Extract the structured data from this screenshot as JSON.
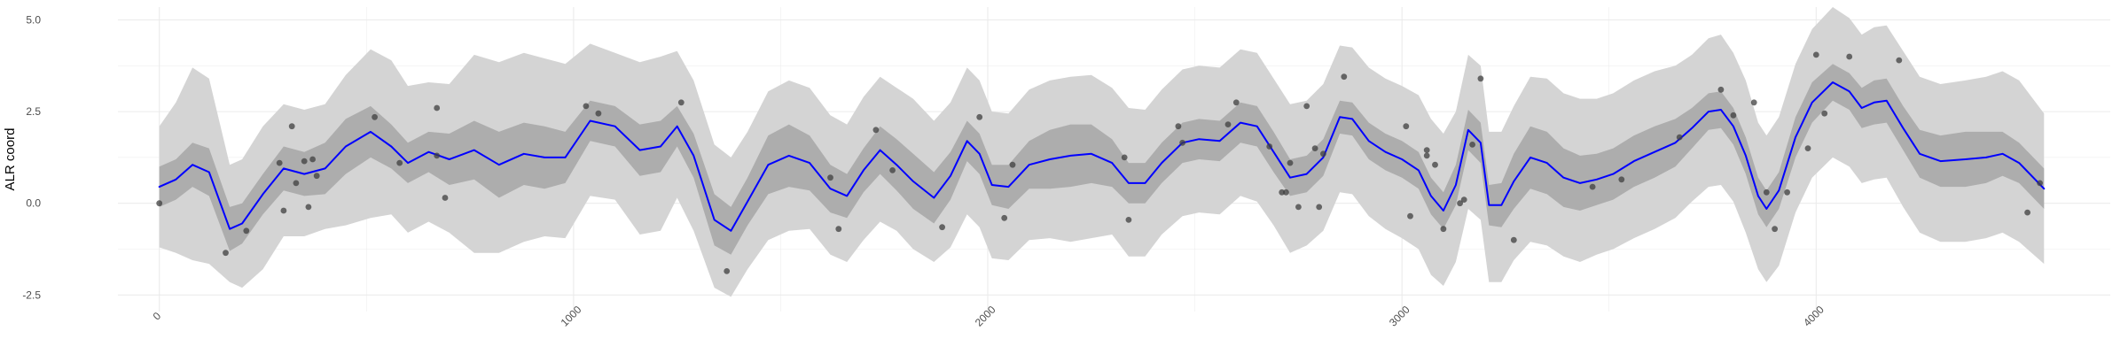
{
  "chart_data": {
    "type": "line",
    "title": "",
    "xlabel": "",
    "ylabel": "ALR coord",
    "xlim": [
      -100,
      4710
    ],
    "ylim": [
      -2.95,
      5.35
    ],
    "x_ticks": [
      0,
      1000,
      2000,
      3000,
      4000
    ],
    "x_tick_labels": [
      "0",
      "1000",
      "2000",
      "3000",
      "4000"
    ],
    "y_ticks": [
      -2.5,
      0,
      2.5,
      5
    ],
    "y_tick_labels": [
      "-2.5",
      "0.0",
      "2.5",
      "5.0"
    ],
    "grid": true,
    "legend": "none",
    "colors": {
      "line": "#0000ff",
      "inner_band": "#adadad",
      "outer_band": "#d4d4d4",
      "points": "#3f3f3f",
      "grid": "#ebebeb"
    },
    "mean_line": {
      "x": [
        0,
        40,
        80,
        120,
        170,
        200,
        250,
        300,
        350,
        400,
        450,
        510,
        560,
        600,
        650,
        700,
        760,
        820,
        880,
        930,
        980,
        1040,
        1100,
        1160,
        1210,
        1250,
        1290,
        1340,
        1380,
        1420,
        1470,
        1520,
        1570,
        1620,
        1660,
        1700,
        1740,
        1780,
        1820,
        1870,
        1910,
        1950,
        1980,
        2010,
        2050,
        2100,
        2150,
        2200,
        2250,
        2300,
        2340,
        2380,
        2420,
        2470,
        2510,
        2560,
        2610,
        2650,
        2690,
        2730,
        2770,
        2810,
        2850,
        2880,
        2920,
        2960,
        3000,
        3040,
        3070,
        3100,
        3130,
        3160,
        3190,
        3210,
        3240,
        3270,
        3310,
        3350,
        3390,
        3430,
        3470,
        3510,
        3560,
        3610,
        3660,
        3700,
        3740,
        3770,
        3800,
        3830,
        3860,
        3880,
        3910,
        3950,
        3990,
        4040,
        4080,
        4110,
        4140,
        4170,
        4210,
        4250,
        4300,
        4360,
        4410,
        4450,
        4490,
        4550
      ],
      "y": [
        0.45,
        0.65,
        1.05,
        0.85,
        -0.7,
        -0.55,
        0.25,
        0.95,
        0.8,
        0.95,
        1.55,
        1.95,
        1.55,
        1.1,
        1.4,
        1.2,
        1.45,
        1.05,
        1.35,
        1.25,
        1.25,
        2.25,
        2.1,
        1.45,
        1.55,
        2.1,
        1.3,
        -0.45,
        -0.75,
        0.05,
        1.05,
        1.3,
        1.1,
        0.4,
        0.2,
        0.9,
        1.45,
        1.05,
        0.6,
        0.15,
        0.75,
        1.7,
        1.35,
        0.5,
        0.45,
        1.05,
        1.2,
        1.3,
        1.35,
        1.1,
        0.55,
        0.55,
        1.1,
        1.65,
        1.75,
        1.7,
        2.2,
        2.1,
        1.4,
        0.7,
        0.8,
        1.25,
        2.35,
        2.3,
        1.7,
        1.4,
        1.2,
        0.9,
        0.2,
        -0.2,
        0.5,
        2.0,
        1.65,
        -0.05,
        -0.05,
        0.6,
        1.25,
        1.1,
        0.7,
        0.55,
        0.65,
        0.8,
        1.15,
        1.4,
        1.65,
        2.05,
        2.5,
        2.55,
        2.1,
        1.3,
        0.2,
        -0.15,
        0.35,
        1.8,
        2.75,
        3.3,
        3.05,
        2.6,
        2.75,
        2.8,
        2.05,
        1.35,
        1.15,
        1.2,
        1.25,
        1.35,
        1.1,
        0.4
      ]
    },
    "inner_band": {
      "x": [
        0,
        40,
        80,
        120,
        170,
        200,
        250,
        300,
        350,
        400,
        450,
        510,
        560,
        600,
        650,
        700,
        760,
        820,
        880,
        930,
        980,
        1040,
        1100,
        1160,
        1210,
        1250,
        1290,
        1340,
        1380,
        1420,
        1470,
        1520,
        1570,
        1620,
        1660,
        1700,
        1740,
        1780,
        1820,
        1870,
        1910,
        1950,
        1980,
        2010,
        2050,
        2100,
        2150,
        2200,
        2250,
        2300,
        2340,
        2380,
        2420,
        2470,
        2510,
        2560,
        2610,
        2650,
        2690,
        2730,
        2770,
        2810,
        2850,
        2880,
        2920,
        2960,
        3000,
        3040,
        3070,
        3100,
        3130,
        3160,
        3190,
        3210,
        3240,
        3270,
        3310,
        3350,
        3390,
        3430,
        3470,
        3510,
        3560,
        3610,
        3660,
        3700,
        3740,
        3770,
        3800,
        3830,
        3860,
        3880,
        3910,
        3950,
        3990,
        4040,
        4080,
        4110,
        4140,
        4170,
        4210,
        4250,
        4300,
        4360,
        4410,
        4450,
        4490,
        4550
      ],
      "half_width": [
        0.55,
        0.55,
        0.6,
        0.65,
        0.6,
        0.55,
        0.55,
        0.6,
        0.6,
        0.7,
        0.75,
        0.7,
        0.6,
        0.55,
        0.55,
        0.7,
        0.8,
        0.9,
        0.85,
        0.85,
        0.7,
        0.55,
        0.55,
        0.7,
        0.7,
        0.55,
        0.6,
        0.7,
        0.65,
        0.65,
        0.8,
        0.85,
        0.75,
        0.65,
        0.6,
        0.6,
        0.65,
        0.7,
        0.75,
        0.7,
        0.65,
        0.55,
        0.55,
        0.55,
        0.6,
        0.65,
        0.8,
        0.85,
        0.8,
        0.65,
        0.55,
        0.55,
        0.55,
        0.55,
        0.55,
        0.55,
        0.55,
        0.55,
        0.55,
        0.5,
        0.5,
        0.5,
        0.45,
        0.45,
        0.5,
        0.5,
        0.5,
        0.5,
        0.5,
        0.5,
        0.55,
        0.55,
        0.55,
        0.55,
        0.6,
        0.75,
        0.85,
        0.85,
        0.8,
        0.75,
        0.7,
        0.7,
        0.7,
        0.7,
        0.65,
        0.55,
        0.5,
        0.5,
        0.5,
        0.5,
        0.5,
        0.5,
        0.5,
        0.55,
        0.55,
        0.5,
        0.5,
        0.55,
        0.6,
        0.6,
        0.6,
        0.65,
        0.7,
        0.75,
        0.7,
        0.6,
        0.55,
        0.55
      ]
    },
    "outer_band": {
      "x": [
        0,
        40,
        80,
        120,
        170,
        200,
        250,
        300,
        350,
        400,
        450,
        510,
        560,
        600,
        650,
        700,
        760,
        820,
        880,
        930,
        980,
        1040,
        1100,
        1160,
        1210,
        1250,
        1290,
        1340,
        1380,
        1420,
        1470,
        1520,
        1570,
        1620,
        1660,
        1700,
        1740,
        1780,
        1820,
        1870,
        1910,
        1950,
        1980,
        2010,
        2050,
        2100,
        2150,
        2200,
        2250,
        2300,
        2340,
        2380,
        2420,
        2470,
        2510,
        2560,
        2610,
        2650,
        2690,
        2730,
        2770,
        2810,
        2850,
        2880,
        2920,
        2960,
        3000,
        3040,
        3070,
        3100,
        3130,
        3160,
        3190,
        3210,
        3240,
        3270,
        3310,
        3350,
        3390,
        3430,
        3470,
        3510,
        3560,
        3610,
        3660,
        3700,
        3740,
        3770,
        3800,
        3830,
        3860,
        3880,
        3910,
        3950,
        3990,
        4040,
        4080,
        4110,
        4140,
        4170,
        4210,
        4250,
        4300,
        4360,
        4410,
        4450,
        4490,
        4550
      ],
      "lower": [
        -1.2,
        -1.35,
        -1.55,
        -1.65,
        -2.15,
        -2.3,
        -1.8,
        -0.9,
        -0.9,
        -0.7,
        -0.6,
        -0.4,
        -0.3,
        -0.8,
        -0.5,
        -0.8,
        -1.35,
        -1.35,
        -1.05,
        -0.9,
        -0.95,
        0.2,
        0.1,
        -0.85,
        -0.75,
        0.15,
        -0.75,
        -2.3,
        -2.55,
        -1.8,
        -1.0,
        -0.75,
        -0.7,
        -1.4,
        -1.6,
        -1.0,
        -0.5,
        -0.75,
        -1.25,
        -1.6,
        -1.2,
        -0.3,
        -0.65,
        -1.5,
        -1.55,
        -1.0,
        -0.95,
        -1.05,
        -0.95,
        -0.85,
        -1.45,
        -1.45,
        -0.85,
        -0.35,
        -0.25,
        -0.3,
        0.2,
        0.05,
        -0.6,
        -1.35,
        -1.15,
        -0.75,
        0.3,
        0.25,
        -0.35,
        -0.7,
        -0.95,
        -1.25,
        -1.95,
        -2.25,
        -1.6,
        -0.15,
        -0.45,
        -2.15,
        -2.15,
        -1.55,
        -1.05,
        -1.15,
        -1.45,
        -1.6,
        -1.4,
        -1.25,
        -0.95,
        -0.7,
        -0.4,
        0.05,
        0.45,
        0.5,
        0.05,
        -0.8,
        -1.8,
        -2.15,
        -1.7,
        -0.25,
        0.7,
        1.25,
        1.0,
        0.55,
        0.65,
        0.7,
        -0.1,
        -0.8,
        -1.05,
        -1.05,
        -0.95,
        -0.8,
        -1.05,
        -1.65
      ],
      "upper": [
        2.1,
        2.75,
        3.7,
        3.4,
        1.05,
        1.2,
        2.1,
        2.7,
        2.55,
        2.7,
        3.5,
        4.2,
        3.9,
        3.2,
        3.3,
        3.25,
        4.05,
        3.85,
        4.1,
        3.95,
        3.8,
        4.35,
        4.1,
        3.85,
        4.0,
        4.15,
        3.35,
        1.6,
        1.25,
        1.95,
        3.05,
        3.35,
        3.15,
        2.4,
        2.15,
        2.9,
        3.45,
        3.15,
        2.85,
        2.25,
        2.75,
        3.7,
        3.35,
        2.5,
        2.45,
        3.1,
        3.35,
        3.45,
        3.5,
        3.15,
        2.6,
        2.55,
        3.1,
        3.65,
        3.75,
        3.7,
        4.2,
        4.1,
        3.4,
        2.7,
        2.8,
        3.25,
        4.3,
        4.25,
        3.7,
        3.4,
        3.2,
        2.95,
        2.3,
        1.9,
        2.5,
        4.05,
        3.75,
        1.95,
        1.95,
        2.65,
        3.45,
        3.4,
        3.0,
        2.85,
        2.85,
        3.0,
        3.35,
        3.6,
        3.75,
        4.05,
        4.5,
        4.6,
        4.1,
        3.35,
        2.2,
        1.85,
        2.35,
        3.8,
        4.75,
        5.35,
        5.05,
        4.6,
        4.8,
        4.85,
        4.15,
        3.45,
        3.25,
        3.35,
        3.45,
        3.6,
        3.35,
        2.45
      ]
    },
    "points": {
      "x": [
        0,
        160,
        210,
        290,
        300,
        320,
        330,
        350,
        360,
        370,
        380,
        520,
        580,
        670,
        670,
        690,
        1030,
        1060,
        1260,
        1370,
        1620,
        1640,
        1730,
        1770,
        1890,
        1980,
        2040,
        2060,
        2330,
        2340,
        2460,
        2470,
        2580,
        2600,
        2680,
        2710,
        2720,
        2730,
        2750,
        2770,
        2790,
        2800,
        2810,
        2860,
        3010,
        3020,
        3060,
        3060,
        3080,
        3100,
        3140,
        3150,
        3170,
        3190,
        3270,
        3460,
        3530,
        3670,
        3770,
        3800,
        3850,
        3880,
        3900,
        3930,
        3980,
        4000,
        4020,
        4080,
        4200,
        4510,
        4540
      ],
      "y": [
        0.0,
        -1.35,
        -0.75,
        1.1,
        -0.2,
        2.1,
        0.55,
        1.15,
        -0.1,
        1.2,
        0.75,
        2.35,
        1.1,
        1.3,
        2.6,
        0.15,
        2.65,
        2.45,
        2.75,
        -1.85,
        0.7,
        -0.7,
        2.0,
        0.9,
        -0.65,
        2.35,
        -0.4,
        1.05,
        1.25,
        -0.45,
        2.1,
        1.65,
        2.15,
        2.75,
        1.55,
        0.3,
        0.3,
        1.1,
        -0.1,
        2.65,
        1.5,
        -0.1,
        1.35,
        3.45,
        2.1,
        -0.35,
        1.3,
        1.45,
        1.05,
        -0.7,
        0.0,
        0.1,
        1.6,
        3.4,
        -1.0,
        0.45,
        0.65,
        1.8,
        3.1,
        2.4,
        2.75,
        0.3,
        -0.7,
        0.3,
        1.5,
        4.05,
        2.45,
        4.0,
        3.9,
        -0.25,
        0.55
      ]
    }
  }
}
